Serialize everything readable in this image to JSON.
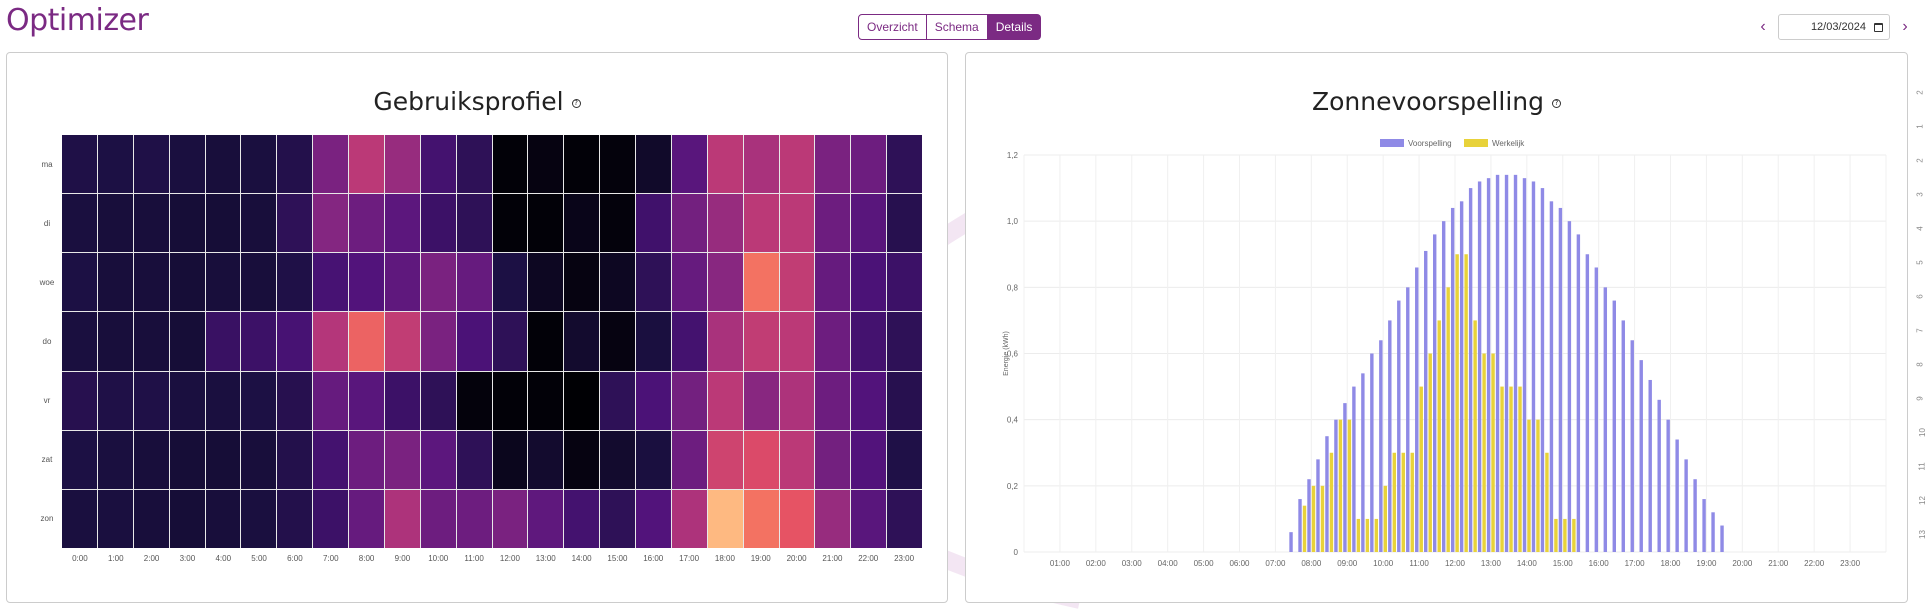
{
  "app_title": "Optimizer",
  "tabs": [
    {
      "label": "Overzicht",
      "active": false
    },
    {
      "label": "Schema",
      "active": false
    },
    {
      "label": "Details",
      "active": true
    }
  ],
  "date_value": "12/03/2024",
  "nav": {
    "prev_icon": "chevron-left-icon",
    "next_icon": "chevron-right-icon"
  },
  "heatmap": {
    "title": "Gebruiksprofiel",
    "days": [
      "ma",
      "di",
      "woe",
      "do",
      "vr",
      "zat",
      "zon"
    ],
    "hours": [
      "0:00",
      "1:00",
      "2:00",
      "3:00",
      "4:00",
      "5:00",
      "6:00",
      "7:00",
      "8:00",
      "9:00",
      "10:00",
      "11:00",
      "12:00",
      "13:00",
      "14:00",
      "15:00",
      "16:00",
      "17:00",
      "18:00",
      "19:00",
      "20:00",
      "21:00",
      "22:00",
      "23:00"
    ],
    "values": [
      [
        0.16,
        0.15,
        0.16,
        0.14,
        0.13,
        0.14,
        0.17,
        0.42,
        0.6,
        0.5,
        0.26,
        0.2,
        0.01,
        0.03,
        0.01,
        0.02,
        0.09,
        0.32,
        0.6,
        0.55,
        0.6,
        0.42,
        0.38,
        0.2
      ],
      [
        0.14,
        0.13,
        0.13,
        0.12,
        0.12,
        0.13,
        0.2,
        0.45,
        0.38,
        0.33,
        0.24,
        0.2,
        0.01,
        0.01,
        0.05,
        0.02,
        0.25,
        0.4,
        0.5,
        0.6,
        0.6,
        0.38,
        0.32,
        0.18
      ],
      [
        0.15,
        0.13,
        0.13,
        0.12,
        0.13,
        0.13,
        0.16,
        0.27,
        0.3,
        0.34,
        0.42,
        0.36,
        0.15,
        0.07,
        0.03,
        0.07,
        0.2,
        0.36,
        0.46,
        0.82,
        0.62,
        0.36,
        0.28,
        0.24
      ],
      [
        0.14,
        0.13,
        0.13,
        0.12,
        0.23,
        0.24,
        0.27,
        0.58,
        0.78,
        0.62,
        0.42,
        0.28,
        0.2,
        0.01,
        0.1,
        0.03,
        0.14,
        0.26,
        0.55,
        0.62,
        0.6,
        0.38,
        0.26,
        0.2
      ],
      [
        0.18,
        0.16,
        0.16,
        0.14,
        0.14,
        0.15,
        0.18,
        0.36,
        0.32,
        0.24,
        0.2,
        0.02,
        0.01,
        0.01,
        0.0,
        0.2,
        0.28,
        0.4,
        0.6,
        0.46,
        0.56,
        0.38,
        0.3,
        0.18
      ],
      [
        0.15,
        0.14,
        0.13,
        0.12,
        0.12,
        0.13,
        0.17,
        0.26,
        0.38,
        0.42,
        0.33,
        0.2,
        0.06,
        0.1,
        0.03,
        0.1,
        0.14,
        0.38,
        0.66,
        0.7,
        0.6,
        0.4,
        0.3,
        0.16
      ],
      [
        0.14,
        0.14,
        0.13,
        0.12,
        0.13,
        0.14,
        0.17,
        0.24,
        0.36,
        0.56,
        0.38,
        0.38,
        0.42,
        0.34,
        0.26,
        0.2,
        0.3,
        0.56,
        1.0,
        0.82,
        0.74,
        0.5,
        0.32,
        0.2
      ]
    ]
  },
  "solar": {
    "title": "Zonnevoorspelling"
  },
  "chart_data": {
    "type": "bar",
    "title": "Zonnevoorspelling",
    "ylabel": "Energie (kWh)",
    "ylim": [
      0,
      1.2
    ],
    "yticks": [
      "0",
      "0,2",
      "0,4",
      "0,6",
      "0,8",
      "1,0",
      "1,2"
    ],
    "xticks": [
      "01:00",
      "02:00",
      "03:00",
      "04:00",
      "05:00",
      "06:00",
      "07:00",
      "08:00",
      "09:00",
      "10:00",
      "11:00",
      "12:00",
      "13:00",
      "14:00",
      "15:00",
      "16:00",
      "17:00",
      "18:00",
      "19:00",
      "20:00",
      "21:00",
      "22:00",
      "23:00"
    ],
    "legend_position": "top",
    "series": [
      {
        "name": "Voorspelling",
        "color": "#8f8ae6",
        "start": "07:30",
        "step_minutes": 15,
        "values": [
          0.06,
          0.16,
          0.22,
          0.28,
          0.35,
          0.4,
          0.45,
          0.5,
          0.54,
          0.6,
          0.64,
          0.7,
          0.76,
          0.8,
          0.86,
          0.91,
          0.96,
          1.0,
          1.04,
          1.06,
          1.1,
          1.12,
          1.13,
          1.14,
          1.14,
          1.14,
          1.13,
          1.12,
          1.1,
          1.06,
          1.04,
          1.0,
          0.96,
          0.9,
          0.86,
          0.8,
          0.76,
          0.7,
          0.64,
          0.58,
          0.52,
          0.46,
          0.4,
          0.34,
          0.28,
          0.22,
          0.16,
          0.12,
          0.08
        ]
      },
      {
        "name": "Werkelijk",
        "color": "#e8d23a",
        "start": "07:30",
        "step_minutes": 15,
        "values": [
          0,
          0.14,
          0.2,
          0.2,
          0.3,
          0.4,
          0.4,
          0.1,
          0.1,
          0.1,
          0.2,
          0.3,
          0.3,
          0.3,
          0.5,
          0.6,
          0.7,
          0.8,
          0.9,
          0.9,
          0.7,
          0.6,
          0.6,
          0.5,
          0.5,
          0.5,
          0.4,
          0.4,
          0.3,
          0.1,
          0.1,
          0.1,
          0,
          0,
          0,
          0,
          0,
          0,
          0,
          0,
          0,
          0,
          0,
          0,
          0,
          0,
          0,
          0,
          0
        ]
      }
    ]
  },
  "right_scale": [
    "2",
    "1",
    "2",
    "3",
    "4",
    "5",
    "6",
    "7",
    "8",
    "9",
    "10",
    "11",
    "12",
    "13"
  ]
}
